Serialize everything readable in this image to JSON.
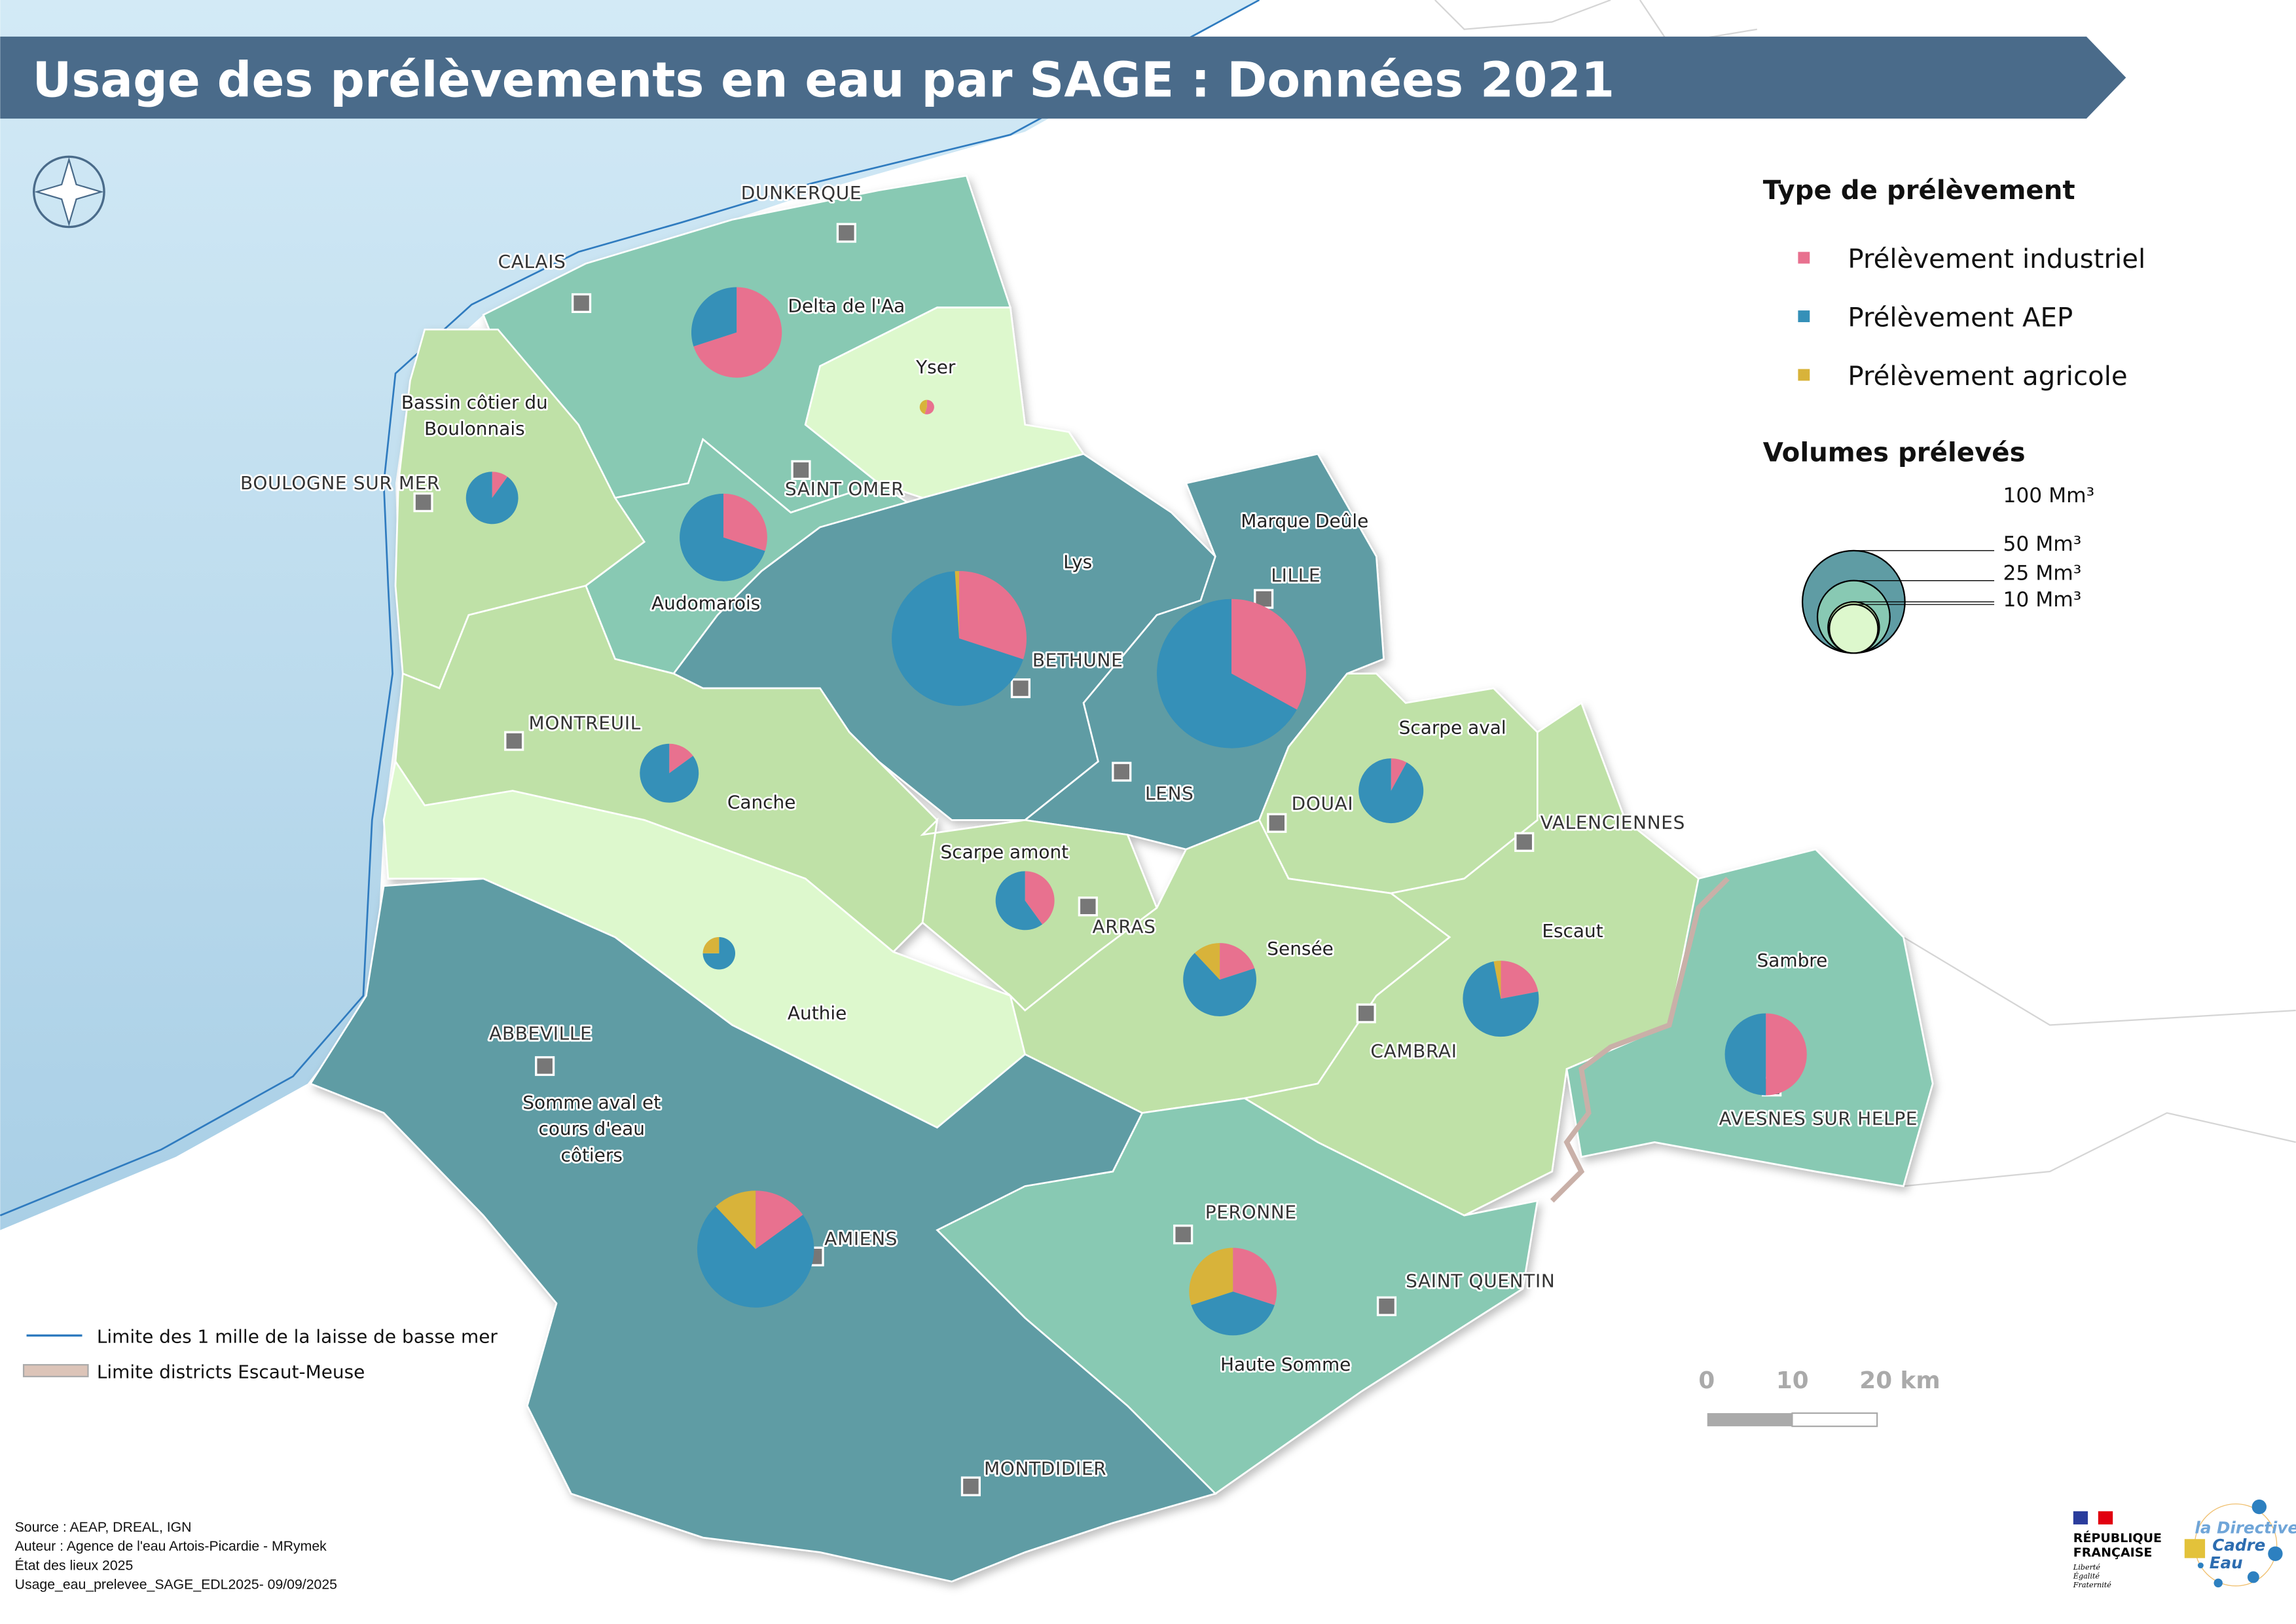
{
  "title": "Usage des prélèvements en eau par SAGE : Données 2021",
  "colors": {
    "industriel": "#e8718f",
    "aep": "#3590b8",
    "agricole": "#d8b33a",
    "title_banner": "#4a6b8a",
    "sea": "#c4e1f1",
    "region_dark": "#5f9ca4",
    "region_mid": "#88c9b3",
    "region_light": "#bfe1a7",
    "region_pale": "#ddf8cd"
  },
  "legend_type": {
    "title": "Type de prélèvement",
    "items": [
      {
        "key": "industriel",
        "label": "Prélèvement industriel"
      },
      {
        "key": "aep",
        "label": "Prélèvement AEP"
      },
      {
        "key": "agricole",
        "label": "Prélèvement agricole"
      }
    ]
  },
  "legend_volume": {
    "title": "Volumes prélevés",
    "items": [
      {
        "value": 100,
        "label": "100 Mm³"
      },
      {
        "value": 50,
        "label": "50 Mm³"
      },
      {
        "value": 25,
        "label": "25 Mm³"
      },
      {
        "value": 10,
        "label": "10 Mm³"
      }
    ]
  },
  "legend_lines": [
    {
      "label": "Limite des 1 mille de la laisse de basse mer"
    },
    {
      "label": "Limite districts Escaut-Meuse"
    }
  ],
  "scale_bar": {
    "labels": [
      "0",
      "10",
      "20 km"
    ]
  },
  "credits": [
    "Source : AEAP, DREAL, IGN",
    "Auteur : Agence de l'eau Artois-Picardie - MRymek",
    "État des lieux 2025",
    "Usage_eau_prelevee_SAGE_EDL2025- 09/09/2025"
  ],
  "logos": {
    "republique": "RÉPUBLIQUE FRANÇAISE — Liberté Égalité Fraternité",
    "dce": "la Directive Cadre Eau"
  },
  "sages": [
    {
      "name": "Delta de l'Aa",
      "tone": "mid",
      "volume_mm3": 78,
      "industriel": 70,
      "aep": 30,
      "agricole": 0
    },
    {
      "name": "Bassin côtier du Boulonnais",
      "tone": "light",
      "volume_mm3": 26,
      "industriel": 10,
      "aep": 90,
      "agricole": 0
    },
    {
      "name": "Audomarois",
      "tone": "mid",
      "volume_mm3": 73,
      "industriel": 30,
      "aep": 70,
      "agricole": 0
    },
    {
      "name": "Yser",
      "tone": "pale",
      "volume_mm3": 2,
      "industriel": 55,
      "aep": 0,
      "agricole": 45
    },
    {
      "name": "Lys",
      "tone": "dark",
      "volume_mm3": 173,
      "industriel": 30,
      "aep": 69,
      "agricole": 1
    },
    {
      "name": "Marque Deûle",
      "tone": "dark",
      "volume_mm3": 212,
      "industriel": 33,
      "aep": 67,
      "agricole": 0
    },
    {
      "name": "Canche",
      "tone": "light",
      "volume_mm3": 33,
      "industriel": 15,
      "aep": 85,
      "agricole": 0
    },
    {
      "name": "Authie",
      "tone": "pale",
      "volume_mm3": 10,
      "industriel": 0,
      "aep": 75,
      "agricole": 25
    },
    {
      "name": "Scarpe amont",
      "tone": "light",
      "volume_mm3": 33,
      "industriel": 40,
      "aep": 60,
      "agricole": 0
    },
    {
      "name": "Scarpe aval",
      "tone": "light",
      "volume_mm3": 40,
      "industriel": 8,
      "aep": 92,
      "agricole": 0
    },
    {
      "name": "Sensée",
      "tone": "light",
      "volume_mm3": 51,
      "industriel": 20,
      "aep": 68,
      "agricole": 12
    },
    {
      "name": "Escaut",
      "tone": "light",
      "volume_mm3": 55,
      "industriel": 22,
      "aep": 75,
      "agricole": 3
    },
    {
      "name": "Sambre",
      "tone": "mid",
      "volume_mm3": 64,
      "industriel": 50,
      "aep": 50,
      "agricole": 0
    },
    {
      "name": "Haute Somme",
      "tone": "mid",
      "volume_mm3": 73,
      "industriel": 30,
      "aep": 40,
      "agricole": 30
    },
    {
      "name": "Somme aval et cours d'eau côtiers",
      "tone": "dark",
      "volume_mm3": 130,
      "industriel": 15,
      "aep": 73,
      "agricole": 12
    }
  ],
  "cities": [
    "DUNKERQUE",
    "CALAIS",
    "BOULOGNE SUR MER",
    "SAINT OMER",
    "LILLE",
    "BETHUNE",
    "LENS",
    "MONTREUIL",
    "DOUAI",
    "VALENCIENNES",
    "ARRAS",
    "CAMBRAI",
    "ABBEVILLE",
    "AMIENS",
    "PERONNE",
    "SAINT QUENTIN",
    "AVESNES SUR HELPE",
    "MONTDIDIER"
  ]
}
